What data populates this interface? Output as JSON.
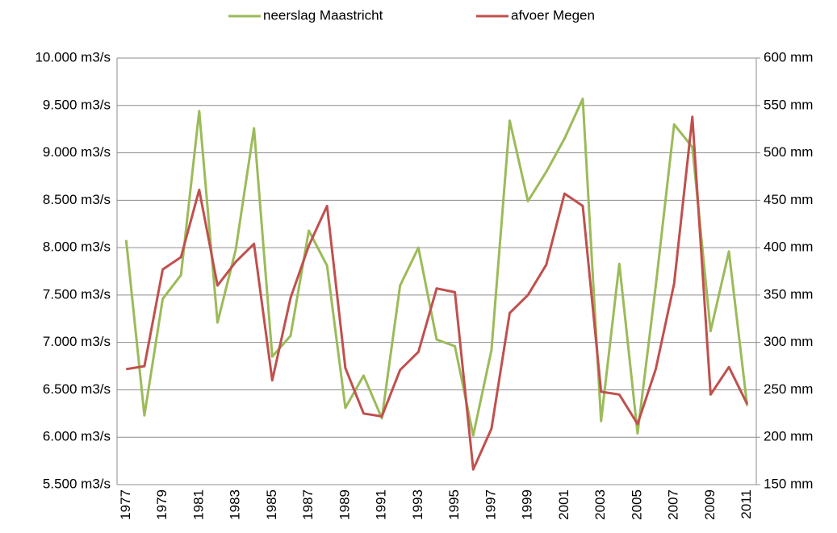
{
  "chart_data": {
    "type": "line",
    "categories": [
      "1977",
      null,
      "1979",
      null,
      "1981",
      null,
      "1983",
      null,
      "1985",
      null,
      "1987",
      null,
      "1989",
      null,
      "1991",
      null,
      "1993",
      null,
      "1995",
      null,
      "1997",
      null,
      "1999",
      null,
      "2001",
      null,
      "2003",
      null,
      "2005",
      null,
      "2007",
      null,
      "2009",
      null,
      "2011"
    ],
    "series": [
      {
        "name": "neerslag Maastricht",
        "color": "#9bbb59",
        "axis": "y2",
        "values": [
          408,
          223,
          346,
          371,
          544,
          321,
          398,
          526,
          285,
          307,
          418,
          381,
          231,
          265,
          220,
          360,
          400,
          303,
          296,
          202,
          292,
          534,
          449,
          480,
          515,
          557,
          217,
          383,
          204,
          360,
          530,
          506,
          312,
          396,
          233
        ]
      },
      {
        "name": "afvoer Megen",
        "color": "#c0504d",
        "values": [
          6718,
          6750,
          7770,
          7900,
          8610,
          7600,
          7850,
          8040,
          6600,
          7470,
          8020,
          8440,
          6730,
          6250,
          6220,
          6710,
          6900,
          7570,
          7530,
          5660,
          6090,
          7310,
          7500,
          7820,
          8570,
          8440,
          6480,
          6450,
          6140,
          6720,
          7620,
          9380,
          6450,
          6740,
          6350
        ]
      }
    ],
    "ylim": [
      5500,
      10000
    ],
    "yticks": [
      {
        "value": 5500,
        "label": "5.500 m3/s"
      },
      {
        "value": 6000,
        "label": "6.000 m3/s"
      },
      {
        "value": 6500,
        "label": "6.500 m3/s"
      },
      {
        "value": 7000,
        "label": "7.000 m3/s"
      },
      {
        "value": 7500,
        "label": "7.500 m3/s"
      },
      {
        "value": 8000,
        "label": "8.000 m3/s"
      },
      {
        "value": 8500,
        "label": "8.500 m3/s"
      },
      {
        "value": 9000,
        "label": "9.000 m3/s"
      },
      {
        "value": 9500,
        "label": "9.500 m3/s"
      },
      {
        "value": 10000,
        "label": "10.000 m3/s"
      }
    ],
    "y2lim": [
      150,
      600
    ],
    "y2ticks": [
      {
        "value": 150,
        "label": "150 mm"
      },
      {
        "value": 200,
        "label": "200 mm"
      },
      {
        "value": 250,
        "label": "250 mm"
      },
      {
        "value": 300,
        "label": "300 mm"
      },
      {
        "value": 350,
        "label": "350 mm"
      },
      {
        "value": 400,
        "label": "400 mm"
      },
      {
        "value": 450,
        "label": "450 mm"
      },
      {
        "value": 500,
        "label": "500 mm"
      },
      {
        "value": 550,
        "label": "550 mm"
      },
      {
        "value": 600,
        "label": "600 mm"
      }
    ],
    "grid": true
  }
}
